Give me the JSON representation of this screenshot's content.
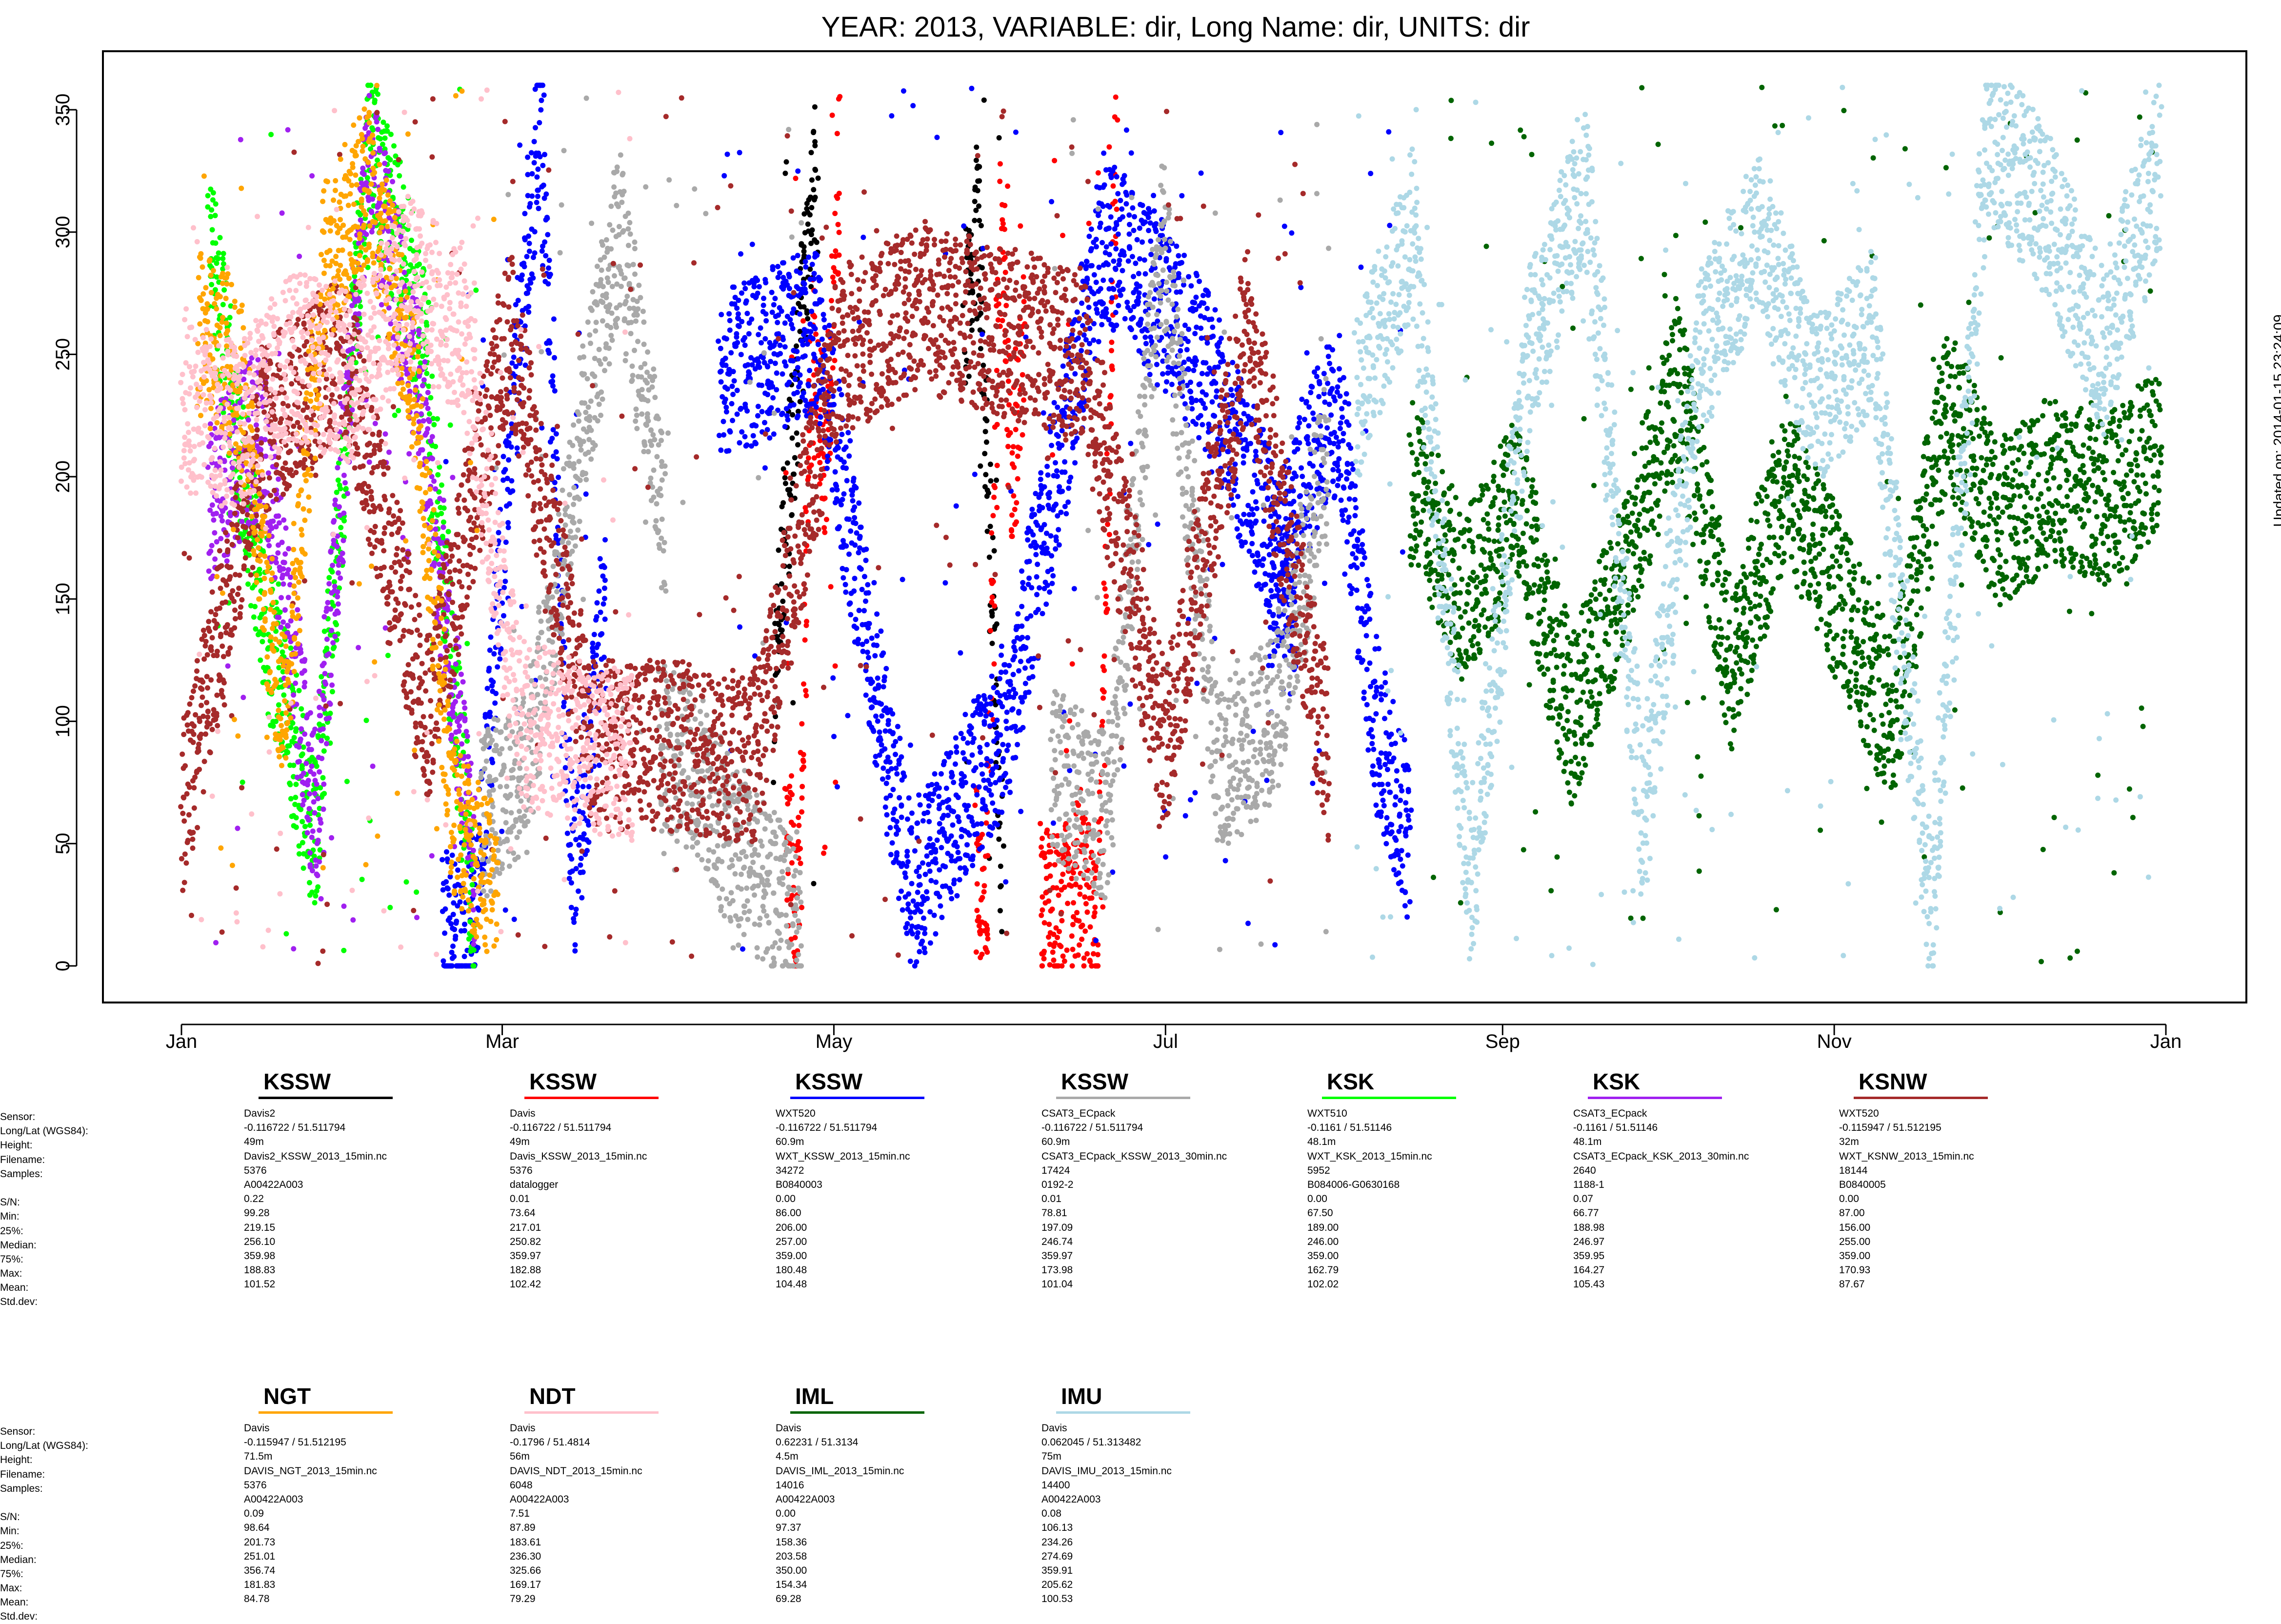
{
  "chart_data": {
    "type": "scatter",
    "title": "YEAR: 2013, VARIABLE: dir, Long Name: dir, UNITS: dir",
    "xlabel": "",
    "ylabel": "",
    "x_ticks": [
      "Jan",
      "Mar",
      "May",
      "Jul",
      "Sep",
      "Nov",
      "Jan"
    ],
    "y_ticks": [
      "0",
      "50",
      "100",
      "150",
      "200",
      "250",
      "300",
      "350"
    ],
    "xlim": [
      "2013-01-01",
      "2014-01-01"
    ],
    "ylim": [
      -12,
      362
    ],
    "grid": false,
    "legend": "below plot, station panels",
    "updated_note": "Updated on: 2014-01-15 23:24:09",
    "series": [
      {
        "name": "KSSW",
        "color": "#000000",
        "segments": [
          {
            "start": "2013-04-20",
            "end": "2013-04-28",
            "values": [
              110,
              180,
              230,
              290,
              330
            ]
          },
          {
            "start": "2013-05-25",
            "end": "2013-06-01",
            "values": [
              260,
              310,
              180,
              40
            ]
          }
        ]
      },
      {
        "name": "KSSW",
        "color": "#ff0000",
        "segments": [
          {
            "start": "2013-04-22",
            "end": "2013-05-02",
            "values": [
              60,
              20,
              250,
              200,
              330
            ]
          },
          {
            "start": "2013-05-27",
            "end": "2013-06-05",
            "values": [
              40,
              30,
              300,
              200,
              250
            ]
          },
          {
            "start": "2013-06-08",
            "end": "2013-06-22",
            "values": [
              30,
              20,
              40,
              10,
              340
            ]
          }
        ]
      },
      {
        "name": "KSSW",
        "color": "#0000ff",
        "segments": [
          {
            "start": "2013-02-18",
            "end": "2013-03-20",
            "values": [
              10,
              20,
              200,
              350,
              30,
              150
            ]
          },
          {
            "start": "2013-04-10",
            "end": "2013-07-25",
            "values": [
              240,
              260,
              30,
              100,
              300,
              250,
              150
            ]
          },
          {
            "start": "2013-07-20",
            "end": "2013-08-15",
            "values": [
              150,
              200,
              230,
              100,
              50
            ]
          }
        ]
      },
      {
        "name": "KSSW",
        "color": "#a9a9a9",
        "segments": [
          {
            "start": "2013-02-25",
            "end": "2013-03-31",
            "values": [
              60,
              80,
              200,
              300,
              180
            ]
          },
          {
            "start": "2013-03-30",
            "end": "2013-04-25",
            "values": [
              90,
              80,
              50,
              30,
              20
            ]
          },
          {
            "start": "2013-06-10",
            "end": "2013-07-31",
            "values": [
              80,
              60,
              300,
              80,
              100,
              210
            ]
          }
        ]
      },
      {
        "name": "KSK",
        "color": "#00ff00",
        "segments": [
          {
            "start": "2013-01-06",
            "end": "2013-02-24",
            "values": [
              300,
              150,
              50,
              340,
              260,
              20
            ]
          }
        ]
      },
      {
        "name": "KSK",
        "color": "#a020f0",
        "segments": [
          {
            "start": "2013-01-06",
            "end": "2013-02-24",
            "values": [
              190,
              220,
              60,
              330,
              230,
              40
            ]
          }
        ]
      },
      {
        "name": "KSNW",
        "color": "#a52a2a",
        "segments": [
          {
            "start": "2013-01-01",
            "end": "2013-07-31",
            "values": [
              60,
              220,
              250,
              100,
              260,
              90,
              90,
              85,
              250,
              270,
              260,
              250,
              90,
              260,
              85
            ]
          }
        ]
      },
      {
        "name": "NGT",
        "color": "#ffa500",
        "segments": [
          {
            "start": "2013-01-04",
            "end": "2013-02-28",
            "values": [
              260,
              240,
              100,
              290,
              320,
              250,
              60,
              30
            ]
          }
        ]
      },
      {
        "name": "NDT",
        "color": "#ffc0cb",
        "segments": [
          {
            "start": "2013-01-01",
            "end": "2013-03-25",
            "values": [
              230,
              220,
              250,
              240,
              280,
              260,
              100,
              90,
              85
            ]
          }
        ]
      },
      {
        "name": "IML",
        "color": "#006400",
        "segments": [
          {
            "start": "2013-08-15",
            "end": "2013-12-31",
            "values": [
              200,
              150,
              190,
              100,
              160,
              240,
              120,
              200,
              150,
              100,
              230,
              180,
              200,
              190,
              210
            ]
          }
        ]
      },
      {
        "name": "IMU",
        "color": "#add8e6",
        "segments": [
          {
            "start": "2013-08-05",
            "end": "2013-12-31",
            "values": [
              230,
              300,
              30,
              250,
              320,
              60,
              250,
              300,
              230,
              260,
              20,
              340,
              310,
              250,
              330
            ]
          }
        ]
      }
    ]
  },
  "legend_panel": {
    "row_labels": [
      "Sensor:",
      "Long/Lat (WGS84):",
      "Height:",
      "Filename:",
      "Samples:",
      "",
      "S/N:",
      "Min:",
      "25%:",
      "Median:",
      "75%:",
      "Max:",
      "Mean:",
      "Std.dev:"
    ],
    "row_labels_second_block": [
      "Sensor:",
      "Long/Lat (WGS84):",
      "Height:",
      "Filename:",
      "Samples:",
      "",
      "S/N:",
      "Min:",
      "25%:",
      "Median:",
      "75%:",
      "Max:",
      "Mean:",
      "Std.dev:"
    ],
    "stations": [
      {
        "name": "KSSW",
        "color": "#000000",
        "values": [
          "Davis2",
          "-0.116722 / 51.511794",
          "49m",
          "Davis2_KSSW_2013_15min.nc",
          "5376",
          "A00422A003",
          "0.22",
          "99.28",
          "219.15",
          "256.10",
          "359.98",
          "188.83",
          "101.52"
        ]
      },
      {
        "name": "KSSW",
        "color": "#ff0000",
        "values": [
          "Davis",
          "-0.116722 / 51.511794",
          "49m",
          "Davis_KSSW_2013_15min.nc",
          "5376",
          "datalogger",
          "0.01",
          "73.64",
          "217.01",
          "250.82",
          "359.97",
          "182.88",
          "102.42"
        ]
      },
      {
        "name": "KSSW",
        "color": "#0000ff",
        "values": [
          "WXT520",
          "-0.116722 / 51.511794",
          "60.9m",
          "WXT_KSSW_2013_15min.nc",
          "34272",
          "B0840003",
          "0.00",
          "86.00",
          "206.00",
          "257.00",
          "359.00",
          "180.48",
          "104.48"
        ]
      },
      {
        "name": "KSSW",
        "color": "#a9a9a9",
        "values": [
          "CSAT3_ECpack",
          "-0.116722 / 51.511794",
          "60.9m",
          "CSAT3_ECpack_KSSW_2013_30min.nc",
          "17424",
          "0192-2",
          "0.01",
          "78.81",
          "197.09",
          "246.74",
          "359.97",
          "173.98",
          "101.04"
        ]
      },
      {
        "name": "KSK",
        "color": "#00ff00",
        "values": [
          "WXT510",
          "-0.1161 / 51.51146",
          "48.1m",
          "WXT_KSK_2013_15min.nc",
          "5952",
          "B084006-G0630168",
          "0.00",
          "67.50",
          "189.00",
          "246.00",
          "359.00",
          "162.79",
          "102.02"
        ]
      },
      {
        "name": "KSK",
        "color": "#a020f0",
        "values": [
          "CSAT3_ECpack",
          "-0.1161 / 51.51146",
          "48.1m",
          "CSAT3_ECpack_KSK_2013_30min.nc",
          "2640",
          "1188-1",
          "0.07",
          "66.77",
          "188.98",
          "246.97",
          "359.95",
          "164.27",
          "105.43"
        ]
      },
      {
        "name": "KSNW",
        "color": "#a52a2a",
        "values": [
          "WXT520",
          "-0.115947 / 51.512195",
          "32m",
          "WXT_KSNW_2013_15min.nc",
          "18144",
          "B0840005",
          "0.00",
          "87.00",
          "156.00",
          "255.00",
          "359.00",
          "170.93",
          "87.67"
        ]
      },
      {
        "name": "NGT",
        "color": "#ffa500",
        "values": [
          "Davis",
          "-0.115947 / 51.512195",
          "71.5m",
          "DAVIS_NGT_2013_15min.nc",
          "5376",
          "A00422A003",
          "0.09",
          "98.64",
          "201.73",
          "251.01",
          "356.74",
          "181.83",
          "84.78"
        ]
      },
      {
        "name": "NDT",
        "color": "#ffc0cb",
        "values": [
          "Davis",
          "-0.1796 / 51.4814",
          "56m",
          "DAVIS_NDT_2013_15min.nc",
          "6048",
          "A00422A003",
          "7.51",
          "87.89",
          "183.61",
          "236.30",
          "325.66",
          "169.17",
          "79.29"
        ]
      },
      {
        "name": "IML",
        "color": "#006400",
        "values": [
          "Davis",
          "0.62231 / 51.3134",
          "4.5m",
          "DAVIS_IML_2013_15min.nc",
          "14016",
          "A00422A003",
          "0.00",
          "97.37",
          "158.36",
          "203.58",
          "350.00",
          "154.34",
          "69.28"
        ]
      },
      {
        "name": "IMU",
        "color": "#add8e6",
        "values": [
          "Davis",
          "0.062045 / 51.313482",
          "75m",
          "DAVIS_IMU_2013_15min.nc",
          "14400",
          "A00422A003",
          "0.08",
          "106.13",
          "234.26",
          "274.69",
          "359.91",
          "205.62",
          "100.53"
        ]
      }
    ]
  }
}
